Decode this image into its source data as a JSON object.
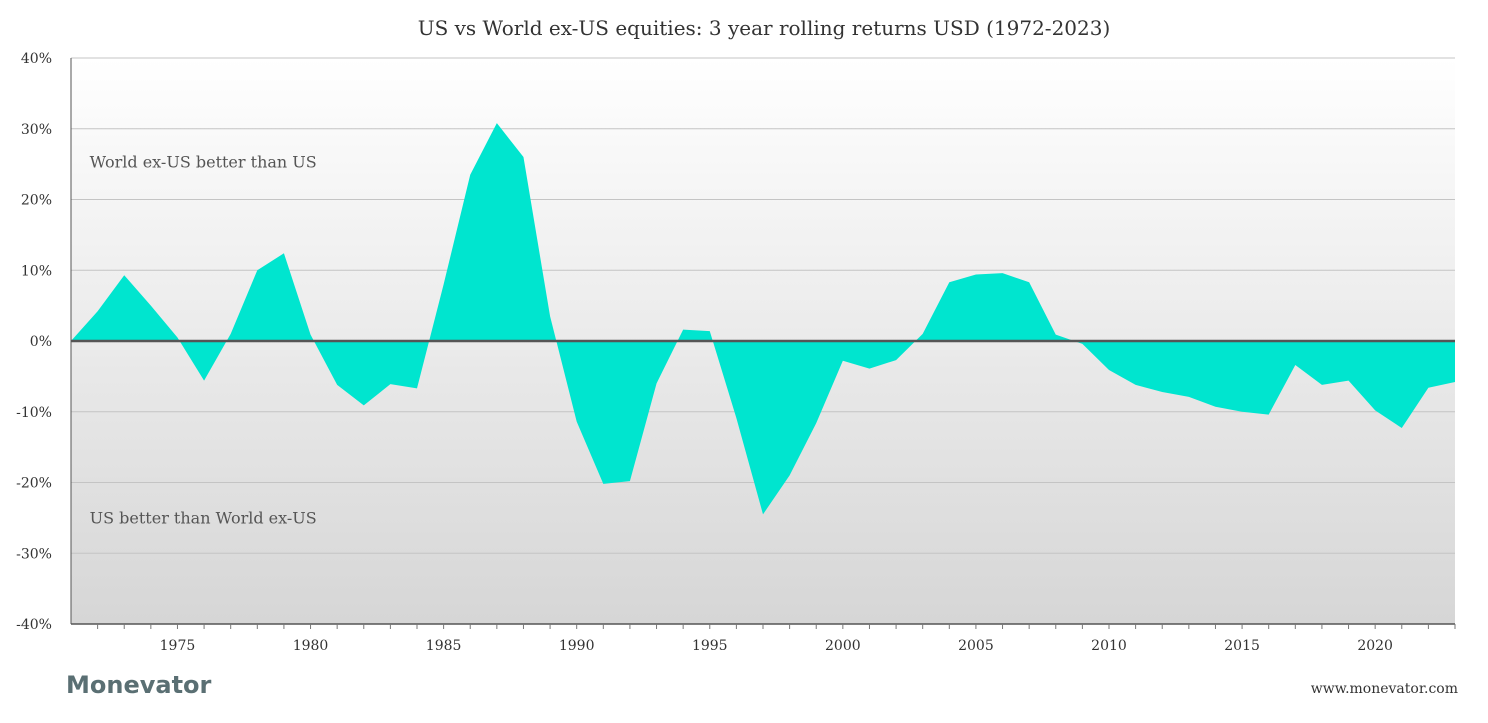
{
  "chart_data": {
    "type": "area",
    "title": "US vs World ex-US equities: 3 year rolling returns USD (1972-2023)",
    "xlabel": "",
    "ylabel": "",
    "xlim": [
      1971,
      2023
    ],
    "ylim": [
      -40,
      40
    ],
    "y_ticks": [
      40,
      30,
      20,
      10,
      0,
      -10,
      -20,
      -30,
      -40
    ],
    "y_tick_labels": [
      "40%",
      "30%",
      "20%",
      "10%",
      "0%",
      "-10%",
      "-20%",
      "-30%",
      "-40%"
    ],
    "x_ticks": [
      1975,
      1980,
      1985,
      1990,
      1995,
      2000,
      2005,
      2010,
      2015,
      2020
    ],
    "x_tick_labels": [
      "1975",
      "1980",
      "1985",
      "1990",
      "1995",
      "2000",
      "2005",
      "2010",
      "2015",
      "2020"
    ],
    "grid": true,
    "legend": "none",
    "fill_color": "#00e5cf",
    "zero_line_color": "#555555",
    "annotations": [
      {
        "text": "World ex-US better than US",
        "x": 1971.7,
        "y": 24.5
      },
      {
        "text": "US better than World ex-US",
        "x": 1971.7,
        "y": -25.8
      }
    ],
    "series": [
      {
        "x": [
          1971,
          1972,
          1973,
          1974,
          1975,
          1976,
          1977,
          1978,
          1979,
          1980,
          1981,
          1982,
          1983,
          1984,
          1985,
          1986,
          1987,
          1988,
          1989,
          1990,
          1991,
          1992,
          1993,
          1994,
          1995,
          1996,
          1997,
          1998,
          1999,
          2000,
          2001,
          2002,
          2003,
          2004,
          2005,
          2006,
          2007,
          2008,
          2009,
          2010,
          2011,
          2012,
          2013,
          2014,
          2015,
          2016,
          2017,
          2018,
          2019,
          2020,
          2021,
          2022,
          2023
        ],
        "values": [
          0.0,
          4.2,
          9.3,
          5.0,
          0.5,
          -5.6,
          1.0,
          10.0,
          12.4,
          0.9,
          -6.2,
          -9.1,
          -6.1,
          -6.7,
          8.0,
          23.5,
          30.8,
          26.0,
          3.5,
          -11.4,
          -20.2,
          -19.8,
          -6.0,
          1.6,
          1.4,
          -10.9,
          -24.5,
          -19.0,
          -11.6,
          -2.8,
          -3.9,
          -2.7,
          1.0,
          8.3,
          9.4,
          9.6,
          8.3,
          0.9,
          -0.4,
          -4.1,
          -6.2,
          -7.2,
          -7.9,
          -9.3,
          -10.0,
          -10.4,
          -3.4,
          -6.2,
          -5.6,
          -9.8,
          -12.3,
          -6.6,
          -5.8
        ]
      }
    ]
  },
  "footer": {
    "brand": "Monevator",
    "url": "www.monevator.com"
  }
}
